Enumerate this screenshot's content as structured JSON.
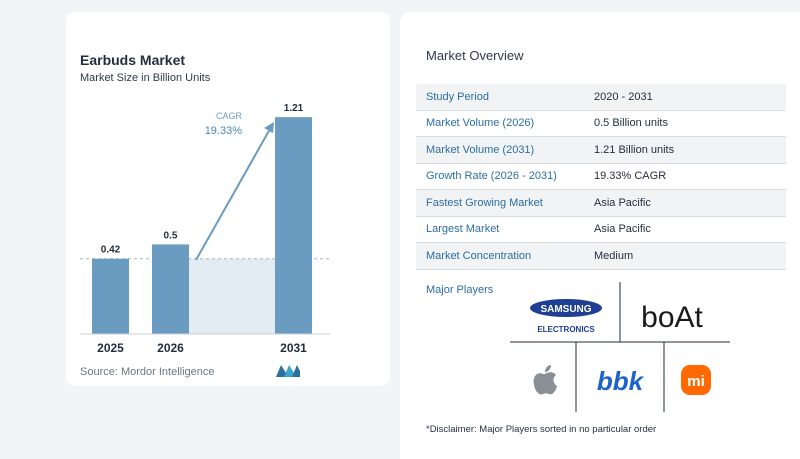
{
  "chart_data": {
    "type": "bar",
    "title": "Earbuds Market",
    "subtitle": "Market Size in Billion Units",
    "categories": [
      "2025",
      "2026",
      "2031"
    ],
    "values": [
      0.42,
      0.5,
      1.21
    ],
    "data_labels": [
      "0.42",
      "0.5",
      "1.21"
    ],
    "cagr_label": "CAGR",
    "cagr_value": "19.33%",
    "source": "Source:  Mordor Intelligence",
    "bar_color": "#6a9bc0",
    "ylim": [
      0,
      1.25
    ]
  },
  "overview": {
    "title": "Market Overview",
    "rows": [
      {
        "label": "Study Period",
        "value": "2020 - 2031"
      },
      {
        "label": "Market Volume (2026)",
        "value": "0.5 Billion units"
      },
      {
        "label": "Market Volume (2031)",
        "value": "1.21 Billion units"
      },
      {
        "label": "Growth Rate (2026 - 2031)",
        "value": "19.33% CAGR"
      },
      {
        "label": "Fastest Growing Market",
        "value": "Asia Pacific"
      },
      {
        "label": "Largest Market",
        "value": "Asia Pacific"
      },
      {
        "label": "Market Concentration",
        "value": "Medium"
      }
    ],
    "players_label": "Major Players",
    "players": {
      "samsung_top": "SAMSUNG",
      "samsung_bottom": "ELECTRONICS",
      "boat": "boAt",
      "bbk": "bbk",
      "apple": "apple-icon",
      "xiaomi": "mi"
    },
    "disclaimer": "*Disclaimer: Major Players sorted in no particular order"
  }
}
